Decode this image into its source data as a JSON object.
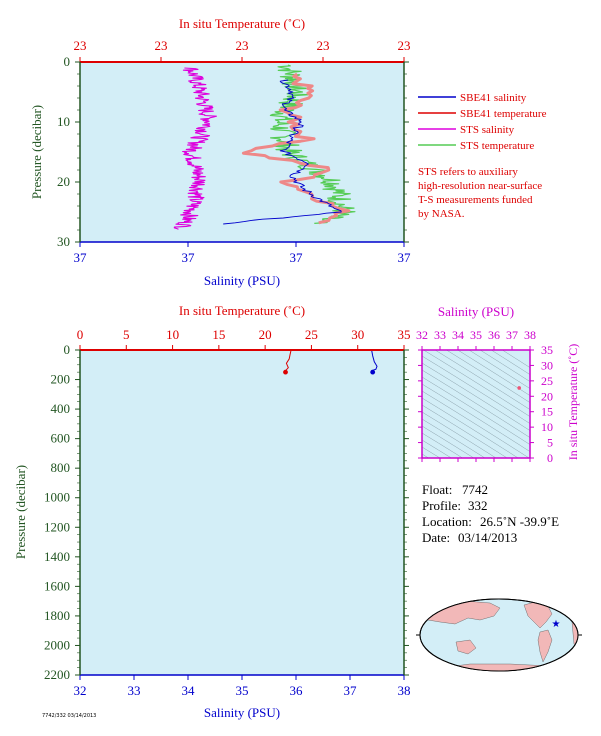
{
  "colors": {
    "panel_bg": "#d3eef7",
    "temperature": "#dd0000",
    "salinity": "#0000cc",
    "pressure": "#225522",
    "sts_salinity": "#dd00dd",
    "sts_temperature": "#55cc55",
    "sbe41_temperature": "#ee8888",
    "ts_axis": "#cc00cc"
  },
  "top_chart": {
    "temperature_axis_label": "In situ Temperature (˚C)",
    "temperature_ticks": [
      "23",
      "23",
      "23",
      "23",
      "23"
    ],
    "salinity_axis_label": "Salinity (PSU)",
    "salinity_ticks": [
      "37",
      "37",
      "37",
      "37"
    ],
    "pressure_axis_label": "Pressure (decibar)",
    "pressure_ticks": [
      "0",
      "10",
      "20",
      "30"
    ],
    "legend": [
      {
        "label": "SBE41 salinity",
        "color": "#0000cc"
      },
      {
        "label": "SBE41 temperature",
        "color": "#dd0000"
      },
      {
        "label": "STS salinity",
        "color": "#dd00dd"
      },
      {
        "label": "STS temperature",
        "color": "#55cc55"
      }
    ],
    "note_lines": [
      "STS refers to auxiliary",
      "high-resolution near-surface",
      "T-S measurements funded",
      "by NASA."
    ]
  },
  "bottom_chart": {
    "temperature_axis_label": "In situ Temperature (˚C)",
    "temperature_ticks": [
      "0",
      "5",
      "10",
      "15",
      "20",
      "25",
      "30",
      "35"
    ],
    "salinity_axis_label": "Salinity (PSU)",
    "salinity_ticks": [
      "32",
      "33",
      "34",
      "35",
      "36",
      "37",
      "38"
    ],
    "pressure_axis_label": "Pressure (decibar)",
    "pressure_ticks": [
      "0",
      "200",
      "400",
      "600",
      "800",
      "1000",
      "1200",
      "1400",
      "1600",
      "1800",
      "2000",
      "2200"
    ]
  },
  "ts_diagram": {
    "salinity_axis_label": "Salinity (PSU)",
    "salinity_ticks": [
      "32",
      "33",
      "34",
      "35",
      "36",
      "37",
      "38"
    ],
    "temperature_axis_label": "In situ Temperature (˚C)",
    "temperature_ticks": [
      "0",
      "5",
      "10",
      "15",
      "20",
      "25",
      "30",
      "35"
    ]
  },
  "float_info": {
    "float_label": "Float:",
    "float_value": "7742",
    "profile_label": "Profile:",
    "profile_value": "332",
    "location_label": "Location:",
    "location_value": "26.5˚N  -39.9˚E",
    "date_label": "Date:",
    "date_value": "03/14/2013"
  },
  "footer_text": "7742/332 03/14/2013",
  "chart_data": [
    {
      "type": "line",
      "title": "",
      "xlabel": "Salinity (PSU)",
      "x2label": "In situ Temperature (˚C)",
      "ylabel": "Pressure (decibar)",
      "ylim": [
        0,
        30
      ],
      "series": [
        {
          "name": "SBE41 salinity",
          "x": [
            37.02,
            37.03,
            37.02,
            37.04,
            37.03,
            37.02,
            37.05,
            37.03,
            37.04,
            37.06,
            37.08,
            36.95
          ],
          "y": [
            3,
            5,
            8,
            10,
            12,
            15,
            17,
            19,
            21,
            23,
            25,
            27
          ]
        },
        {
          "name": "SBE41 temperature",
          "x": [
            23.3,
            23.35,
            23.3,
            23.32,
            23.34,
            23.2,
            23.4,
            23.3,
            23.35,
            23.42,
            23.38
          ],
          "y": [
            2,
            5,
            8,
            11,
            13,
            15,
            18,
            20,
            22,
            25,
            27
          ]
        },
        {
          "name": "STS salinity",
          "x": [
            36.92,
            36.93,
            36.94,
            36.92,
            36.93,
            36.92,
            36.91
          ],
          "y": [
            1,
            5,
            10,
            15,
            20,
            25,
            28
          ]
        },
        {
          "name": "STS temperature",
          "x": [
            23.3,
            23.32,
            23.28,
            23.3,
            23.4,
            23.42,
            23.35
          ],
          "y": [
            0.5,
            5,
            10,
            15,
            20,
            25,
            27
          ]
        }
      ]
    },
    {
      "type": "line",
      "title": "",
      "xlabel": "Salinity (PSU)",
      "x2label": "In situ Temperature (˚C)",
      "ylabel": "Pressure (decibar)",
      "xlim": [
        32,
        38
      ],
      "x2lim": [
        0,
        35
      ],
      "ylim": [
        0,
        2200
      ],
      "series": [
        {
          "name": "Temperature",
          "x": [
            22.8,
            22.7,
            22.6,
            22.3,
            22.5,
            22.2,
            22.2
          ],
          "y": [
            0,
            30,
            60,
            90,
            120,
            140,
            150
          ]
        },
        {
          "name": "Salinity",
          "x": [
            37.4,
            37.42,
            37.45,
            37.5,
            37.48,
            37.4,
            37.42
          ],
          "y": [
            0,
            40,
            80,
            110,
            130,
            140,
            150
          ]
        }
      ]
    },
    {
      "type": "scatter",
      "title": "",
      "xlabel": "Salinity (PSU)",
      "ylabel": "In situ Temperature (˚C)",
      "xlim": [
        32,
        38
      ],
      "ylim": [
        0,
        35
      ],
      "series": [
        {
          "name": "",
          "x": [
            37.4
          ],
          "y": [
            22.7
          ]
        }
      ]
    }
  ]
}
